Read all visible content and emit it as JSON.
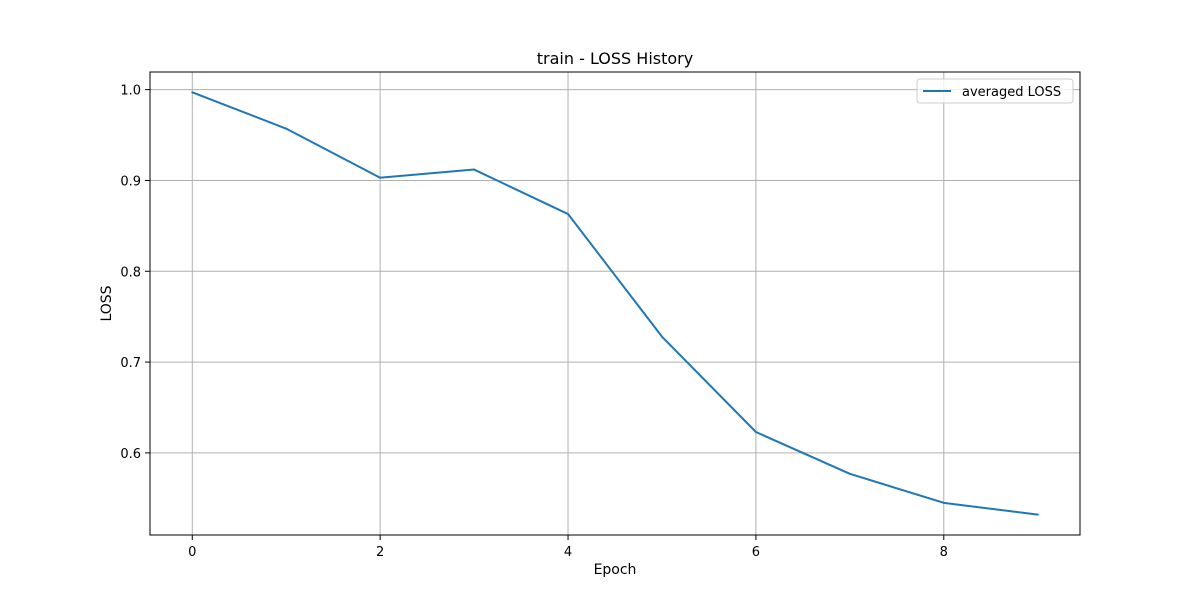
{
  "chart_data": {
    "type": "line",
    "title": "train - LOSS History",
    "xlabel": "Epoch",
    "ylabel": "LOSS",
    "x": [
      0,
      1,
      2,
      3,
      4,
      5,
      6,
      7,
      8,
      9
    ],
    "series": [
      {
        "name": "averaged LOSS",
        "color": "#1f77b4",
        "values": [
          0.997,
          0.957,
          0.903,
          0.912,
          0.863,
          0.728,
          0.623,
          0.577,
          0.545,
          0.532
        ]
      }
    ],
    "xlim": [
      -0.45,
      9.45
    ],
    "ylim": [
      0.5096,
      1.0194
    ],
    "xticks": [
      0,
      2,
      4,
      6,
      8
    ],
    "yticks": [
      0.6,
      0.7,
      0.8,
      0.9,
      1.0
    ],
    "xtick_labels": [
      "0",
      "2",
      "4",
      "6",
      "8"
    ],
    "ytick_labels": [
      "0.6",
      "0.7",
      "0.8",
      "0.9",
      "1.0"
    ],
    "grid": true,
    "legend_position": "top-right"
  }
}
